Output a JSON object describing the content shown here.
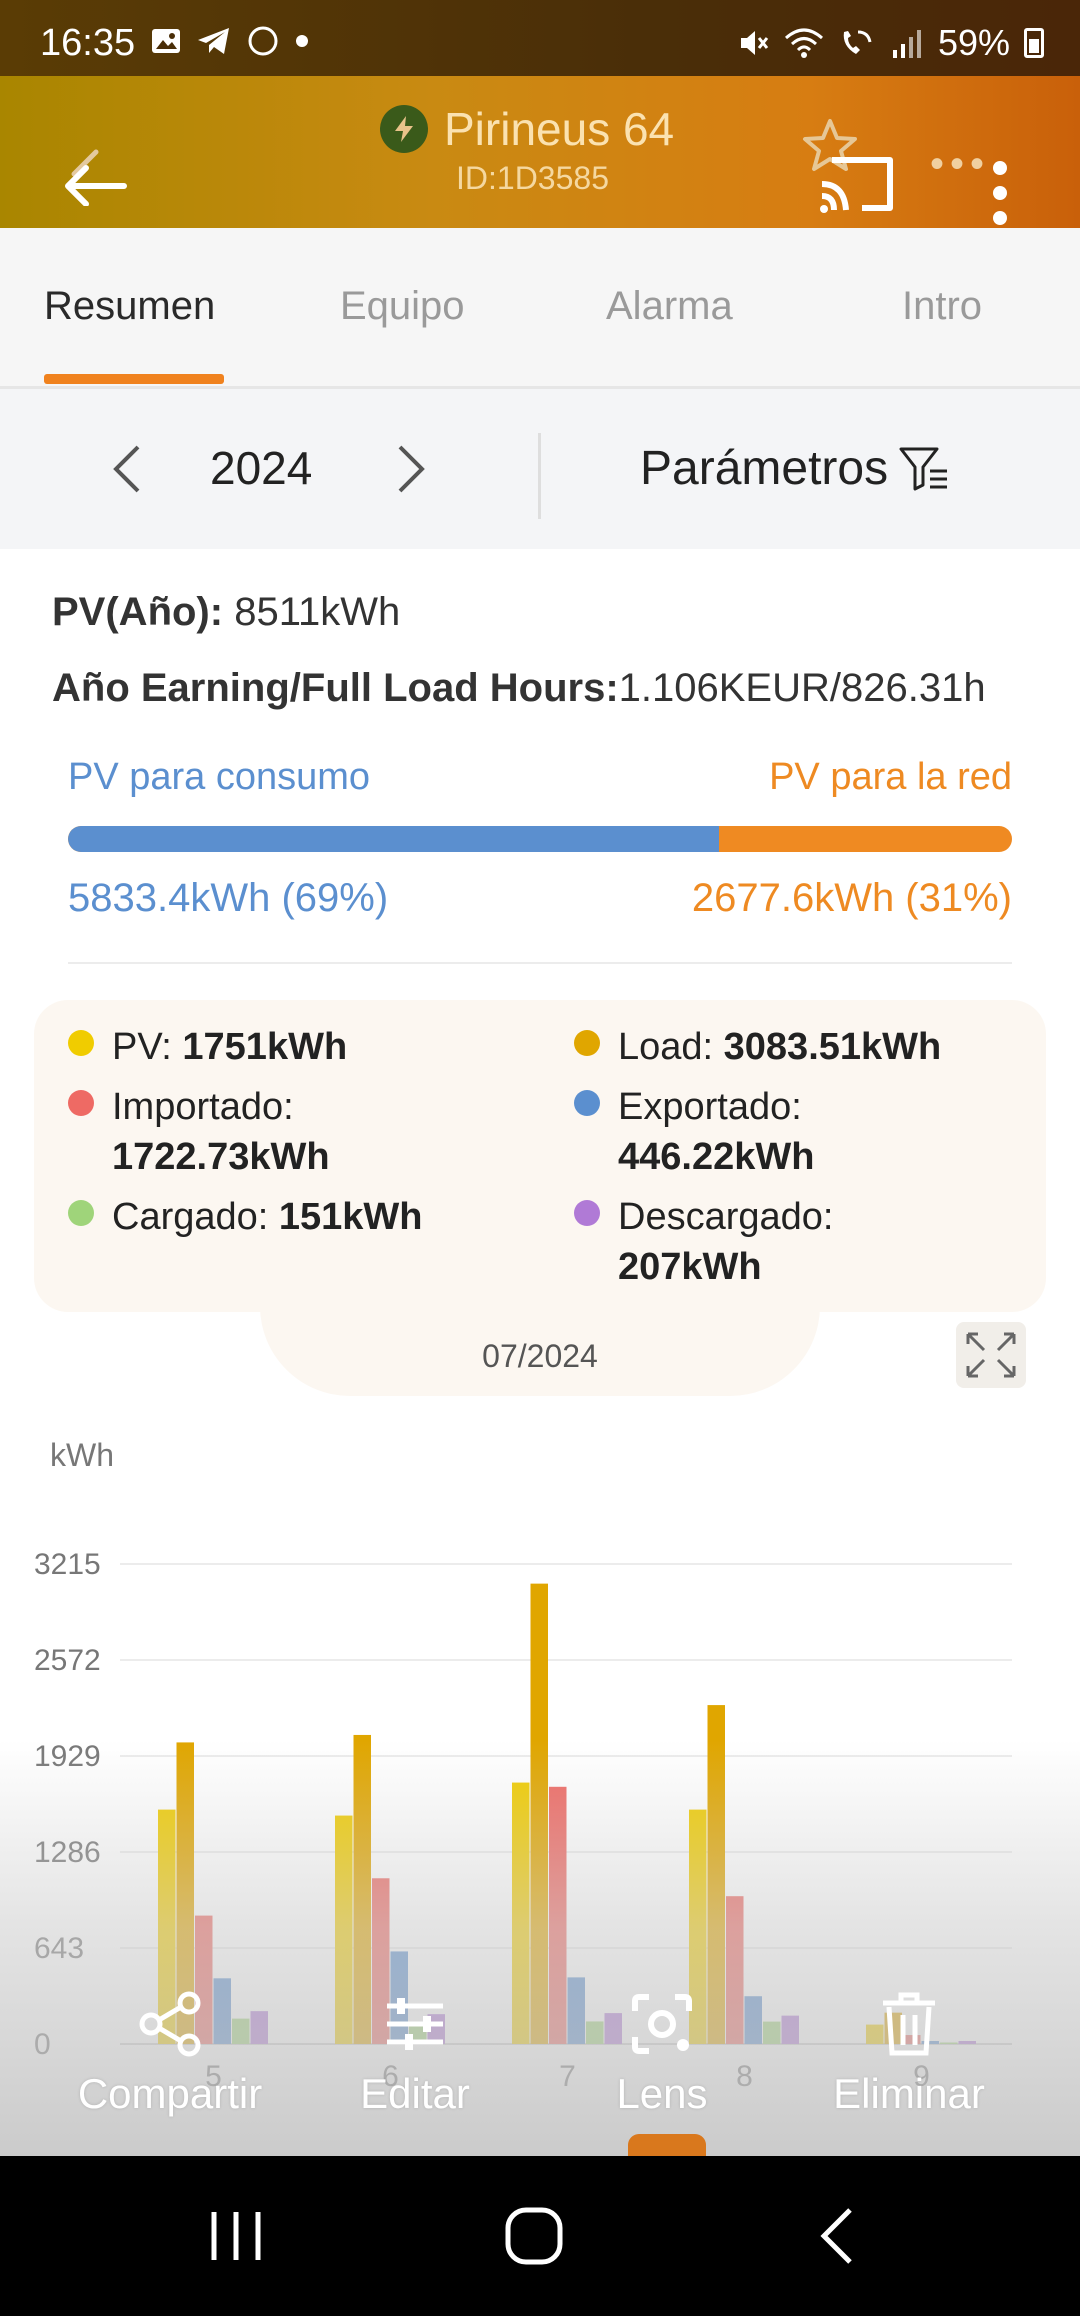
{
  "status": {
    "time": "16:35",
    "battery": "59%"
  },
  "header": {
    "title": "Pirineus 64",
    "subtitle": "ID:1D3585"
  },
  "tabs": [
    {
      "label": "Resumen",
      "active": true
    },
    {
      "label": "Equipo",
      "active": false
    },
    {
      "label": "Alarma",
      "active": false
    },
    {
      "label": "Intro",
      "active": false
    }
  ],
  "yearbar": {
    "year": "2024",
    "params_label": "Parámetros"
  },
  "summary": {
    "pv_year_label": "PV(Año):",
    "pv_year_value": "8511kWh",
    "earning_label": "Año Earning/Full Load Hours:",
    "earning_value": "1.106KEUR/826.31h"
  },
  "split": {
    "left_label": "PV para consumo",
    "right_label": "PV para la red",
    "left_value": "5833.4kWh (69%)",
    "right_value": "2677.6kWh (31%)",
    "left_fraction": 0.69,
    "left_color": "#5b8fcf",
    "right_color": "#ef8a22"
  },
  "legend": [
    {
      "label": "PV:",
      "value": "1751kWh",
      "color": "#f0cc00"
    },
    {
      "label": "Load:",
      "value": "3083.51kWh",
      "color": "#e0a600"
    },
    {
      "label": "Importado:",
      "value": "1722.73kWh",
      "color": "#ee6a64"
    },
    {
      "label": "Exportado:",
      "value": "446.22kWh",
      "color": "#5b8fcf"
    },
    {
      "label": "Cargado:",
      "value": "151kWh",
      "color": "#9fd47a"
    },
    {
      "label": "Descargado:",
      "value": "207kWh",
      "color": "#b07ad6"
    }
  ],
  "month_label": "07/2024",
  "chart_data": {
    "type": "bar",
    "ylabel": "kWh",
    "yticks": [
      "3215",
      "2572",
      "1929",
      "1286",
      "643",
      "0"
    ],
    "ylim": [
      0,
      3215
    ],
    "categories": [
      "5",
      "6",
      "7",
      "8",
      "9"
    ],
    "series": [
      {
        "name": "PV",
        "color": "#f0cc00",
        "values": [
          1570,
          1530,
          1751,
          1570,
          130
        ]
      },
      {
        "name": "Load",
        "color": "#e0a600",
        "values": [
          2020,
          2070,
          3083.51,
          2270,
          210
        ]
      },
      {
        "name": "Importado",
        "color": "#ee6a64",
        "values": [
          860,
          1110,
          1722.73,
          990,
          60
        ]
      },
      {
        "name": "Exportado",
        "color": "#5b8fcf",
        "values": [
          440,
          620,
          446.22,
          320,
          20
        ]
      },
      {
        "name": "Cargado",
        "color": "#9fd47a",
        "values": [
          170,
          150,
          151,
          150,
          10
        ]
      },
      {
        "name": "Descargado",
        "color": "#b07ad6",
        "values": [
          220,
          200,
          207,
          190,
          20
        ]
      }
    ],
    "grid": true
  },
  "actions": [
    {
      "label": "Compartir",
      "icon": "share-icon"
    },
    {
      "label": "Editar",
      "icon": "sliders-icon"
    },
    {
      "label": "Lens",
      "icon": "lens-icon"
    },
    {
      "label": "Eliminar",
      "icon": "trash-icon"
    }
  ]
}
